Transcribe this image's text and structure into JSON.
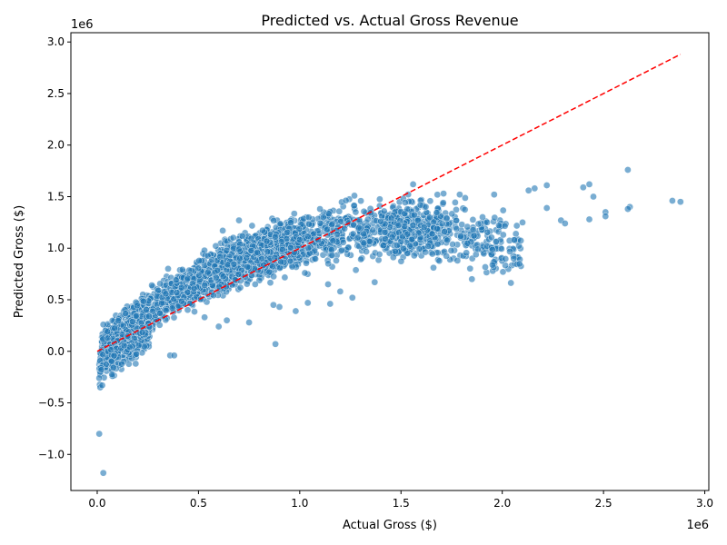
{
  "chart_data": {
    "type": "scatter",
    "title": "Predicted vs. Actual Gross Revenue",
    "xlabel": "Actual Gross ($)",
    "ylabel": "Predicted Gross ($)",
    "x_offset_label": "1e6",
    "y_offset_label": "1e6",
    "xlim": [
      -130000,
      3020000
    ],
    "ylim": [
      -1350000,
      3090000
    ],
    "xticks": [
      0,
      500000,
      1000000,
      1500000,
      2000000,
      2500000,
      3000000
    ],
    "xtick_labels": [
      "0.0",
      "0.5",
      "1.0",
      "1.5",
      "2.0",
      "2.5",
      "3.0"
    ],
    "yticks": [
      -1000000,
      -500000,
      0,
      500000,
      1000000,
      1500000,
      2000000,
      2500000,
      3000000
    ],
    "ytick_labels": [
      "−1.0",
      "−0.5",
      "0.0",
      "0.5",
      "1.0",
      "1.5",
      "2.0",
      "2.5",
      "3.0"
    ],
    "grid": false,
    "point_color": "#1f77b4",
    "point_alpha": 0.6,
    "reference_line": {
      "x": [
        0,
        2880000
      ],
      "y": [
        0,
        2880000
      ],
      "color": "#ff0000",
      "style": "dashed"
    },
    "trend": {
      "description_free": true
    },
    "points_outliers": [
      [
        10000,
        -800000
      ],
      [
        30000,
        -1180000
      ],
      [
        15000,
        -350000
      ],
      [
        25000,
        -330000
      ],
      [
        10000,
        -260000
      ],
      [
        20000,
        -180000
      ],
      [
        360000,
        -40000
      ],
      [
        380000,
        -40000
      ],
      [
        190000,
        -120000
      ],
      [
        880000,
        70000
      ],
      [
        750000,
        280000
      ],
      [
        1850000,
        700000
      ],
      [
        1370000,
        670000
      ],
      [
        1140000,
        650000
      ],
      [
        1150000,
        460000
      ],
      [
        1200000,
        580000
      ],
      [
        1260000,
        520000
      ],
      [
        980000,
        390000
      ],
      [
        900000,
        430000
      ],
      [
        870000,
        450000
      ],
      [
        1040000,
        470000
      ],
      [
        2620000,
        1760000
      ],
      [
        2880000,
        1450000
      ],
      [
        2840000,
        1460000
      ],
      [
        2630000,
        1400000
      ],
      [
        2620000,
        1380000
      ],
      [
        2510000,
        1350000
      ],
      [
        2510000,
        1310000
      ],
      [
        2450000,
        1500000
      ],
      [
        2430000,
        1620000
      ],
      [
        2400000,
        1590000
      ],
      [
        2430000,
        1280000
      ],
      [
        2290000,
        1270000
      ],
      [
        2310000,
        1240000
      ],
      [
        2220000,
        1610000
      ],
      [
        2220000,
        1390000
      ],
      [
        2160000,
        1580000
      ],
      [
        2130000,
        1560000
      ],
      [
        2100000,
        1250000
      ],
      [
        2060000,
        1080000
      ],
      [
        1960000,
        1520000
      ],
      [
        1880000,
        990000
      ],
      [
        1860000,
        1120000
      ],
      [
        1710000,
        1530000
      ],
      [
        1790000,
        1520000
      ],
      [
        1560000,
        1620000
      ],
      [
        700000,
        1270000
      ],
      [
        620000,
        1170000
      ],
      [
        270000,
        640000
      ],
      [
        350000,
        800000
      ],
      [
        600000,
        240000
      ],
      [
        640000,
        300000
      ],
      [
        530000,
        330000
      ],
      [
        1400000,
        1260000
      ],
      [
        1100000,
        1380000
      ],
      [
        1270000,
        1510000
      ]
    ]
  }
}
